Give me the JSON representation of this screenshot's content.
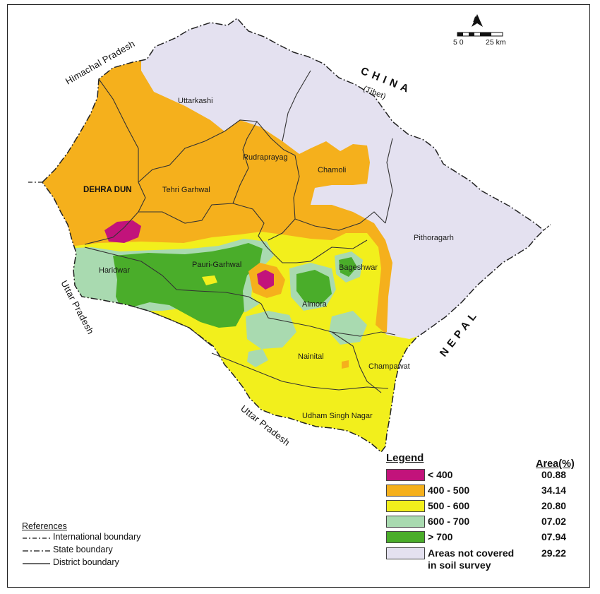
{
  "map": {
    "neighbours": {
      "himachal": "Himachal Pradesh",
      "china": "CHINA",
      "tibet": "(Tibet)",
      "nepal": "NEPAL",
      "uttar_left": "Uttar Pradesh",
      "uttar_bottom": "Uttar Pradesh"
    },
    "districts": [
      "Uttarkashi",
      "DEHRA DUN",
      "Tehri Garhwal",
      "Rudraprayag",
      "Chamoli",
      "Pithoragarh",
      "Haridwar",
      "Pauri-Garhwal",
      "Bageshwar",
      "Almora",
      "Nainital",
      "Champawat",
      "Udham Singh Nagar"
    ],
    "north_arrow": "A",
    "scale": {
      "left": "5 0",
      "right": "25 km"
    }
  },
  "legend": {
    "title": "Legend",
    "area_title": "Area(%)",
    "classes": [
      {
        "label": "< 400",
        "area": "00.88",
        "color": "#c2137b"
      },
      {
        "label": "400 - 500",
        "area": "34.14",
        "color": "#f5b01c"
      },
      {
        "label": "500 - 600",
        "area": "20.80",
        "color": "#f2ef1c"
      },
      {
        "label": "600 - 700",
        "area": "07.02",
        "color": "#a9dab0"
      },
      {
        "label": "> 700",
        "area": "07.94",
        "color": "#4aad2a"
      },
      {
        "label": "Areas not covered",
        "label2": "in soil survey",
        "area": "29.22",
        "color": "#e4e1f0"
      }
    ]
  },
  "references": {
    "title": "References",
    "items": [
      "International boundary",
      "State boundary",
      "District boundary"
    ]
  },
  "colors": {
    "purple": "#c2137b",
    "orange": "#f5b01c",
    "yellow": "#f2ef1c",
    "lightgreen": "#a9dab0",
    "green": "#4aad2a",
    "lavender": "#e4e1f0",
    "border": "#333333"
  }
}
